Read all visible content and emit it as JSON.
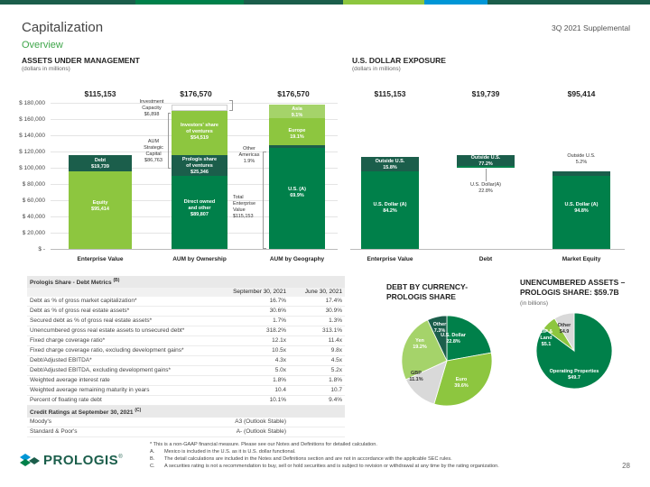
{
  "header": {
    "title": "Capitalization",
    "subtitle": "Overview",
    "supplemental": "3Q 2021 Supplemental",
    "colors": {
      "dark_green": "#1b5e4b",
      "green": "#00804a",
      "lime": "#8dc63f",
      "blue": "#0096d6"
    }
  },
  "aum": {
    "title": "ASSETS UNDER MANAGEMENT",
    "subtitle": "(dollars in millions)",
    "totals": [
      "$115,153",
      "$176,570",
      "$176,570"
    ],
    "y_ticks": [
      "$ 180,000",
      "$ 160,000",
      "$ 140,000",
      "$ 120,000",
      "$ 100,000",
      "$ 80,000",
      "$ 60,000",
      "$ 40,000",
      "$ 20,000",
      "$ -"
    ],
    "categories": [
      "Enterprise Value",
      "AUM by Ownership",
      "AUM by Geography"
    ],
    "labels": {
      "debt": "Debt",
      "debt_val": "$19,739",
      "equity": "Equity",
      "equity_val": "$95,414",
      "direct_owned_1": "Direct owned",
      "direct_owned_2": "and other",
      "direct_owned_val": "$89,807",
      "prologis_share_1": "Prologis share",
      "prologis_share_2": "of ventures",
      "prologis_share_val": "$25,346",
      "investors_share_1": "Investors' share",
      "investors_share_2": "of ventures",
      "investors_share_val": "$54,519",
      "us": "U.S.",
      "us_sup": "(A)",
      "us_val": "69.9%",
      "europe": "Europe",
      "europe_val": "19.1%",
      "asia": "Asia",
      "asia_val": "9.1%",
      "other_americas_1": "Other",
      "other_americas_2": "Americas",
      "other_americas_val": "1.9%",
      "inv_cap_1": "Investment",
      "inv_cap_2": "Capacity",
      "inv_cap_val": "$6,898",
      "aum_sc_1": "AUM",
      "aum_sc_2": "Strategic",
      "aum_sc_3": "Capital",
      "aum_sc_val": "$86,763",
      "tev_1": "Total",
      "tev_2": "Enterprise",
      "tev_3": "Value",
      "tev_val": "$115,153"
    }
  },
  "usd": {
    "title": "U.S. DOLLAR EXPOSURE",
    "subtitle": "(dollars in millions)",
    "totals": [
      "$115,153",
      "$19,739",
      "$95,414"
    ],
    "categories": [
      "Enterprise Value",
      "Debt",
      "Market Equity"
    ],
    "labels": {
      "outside_us": "Outside U.S.",
      "usd": "U.S. Dollar",
      "usd_sup": "(A)",
      "ev_outside": "15.8%",
      "ev_usd": "84.2%",
      "debt_outside": "77.2%",
      "debt_usd": "22.8%",
      "eq_outside": "5.2%",
      "eq_usd": "94.8%"
    }
  },
  "chart_data": [
    {
      "type": "bar",
      "title": "ASSETS UNDER MANAGEMENT",
      "ylim": [
        0,
        180000
      ],
      "categories": [
        "Enterprise Value",
        "AUM by Ownership",
        "AUM by Geography"
      ],
      "series": [
        {
          "name": "Equity",
          "values": [
            95414,
            null,
            null
          ]
        },
        {
          "name": "Debt",
          "values": [
            19739,
            null,
            null
          ]
        },
        {
          "name": "Direct owned and other",
          "values": [
            null,
            89807,
            null
          ]
        },
        {
          "name": "Prologis share of ventures",
          "values": [
            null,
            25346,
            null
          ]
        },
        {
          "name": "Investors' share of ventures",
          "values": [
            null,
            54519,
            null
          ]
        },
        {
          "name": "Investment Capacity",
          "values": [
            null,
            6898,
            null
          ]
        },
        {
          "name": "U.S.",
          "values": [
            null,
            null,
            69.9
          ]
        },
        {
          "name": "Other Americas",
          "values": [
            null,
            null,
            1.9
          ]
        },
        {
          "name": "Europe",
          "values": [
            null,
            null,
            19.1
          ]
        },
        {
          "name": "Asia",
          "values": [
            null,
            null,
            9.1
          ]
        }
      ]
    },
    {
      "type": "bar",
      "title": "U.S. DOLLAR EXPOSURE",
      "categories": [
        "Enterprise Value",
        "Debt",
        "Market Equity"
      ],
      "series": [
        {
          "name": "U.S. Dollar",
          "values": [
            84.2,
            22.8,
            94.8
          ]
        },
        {
          "name": "Outside U.S.",
          "values": [
            15.8,
            77.2,
            5.2
          ]
        }
      ]
    },
    {
      "type": "pie",
      "title": "DEBT BY CURRENCY- PROLOGIS SHARE",
      "labels": [
        "U.S. Dollar",
        "Euro",
        "GBP",
        "Yen",
        "Other"
      ],
      "values": [
        22.8,
        39.6,
        11.1,
        19.2,
        7.3
      ]
    },
    {
      "type": "pie",
      "title": "UNENCUMBERED ASSETS – PROLOGIS SHARE: $59.7B",
      "labels": [
        "Operating Properties",
        "CIP & Land",
        "Other"
      ],
      "values": [
        49.7,
        5.1,
        4.9
      ]
    }
  ],
  "metrics": {
    "title": "Prologis Share - Debt Metrics",
    "title_sup": "(B)",
    "col1": "September 30, 2021",
    "col2": "June 30, 2021",
    "rows": [
      {
        "label": "Debt as % of gross market capitalization*",
        "v1": "16.7%",
        "v2": "17.4%"
      },
      {
        "label": "Debt as % of gross real estate assets*",
        "v1": "30.6%",
        "v2": "30.9%"
      },
      {
        "label": "Secured debt as % of gross real estate assets*",
        "v1": "1.7%",
        "v2": "1.3%"
      },
      {
        "label": "Unencumbered gross real estate assets to unsecured debt*",
        "v1": "318.2%",
        "v2": "313.1%"
      },
      {
        "label": "Fixed charge coverage ratio*",
        "v1": "12.1x",
        "v2": "11.4x"
      },
      {
        "label": "Fixed charge coverage ratio, excluding development gains*",
        "v1": "10.5x",
        "v2": "9.8x"
      },
      {
        "label": "Debt/Adjusted EBITDA*",
        "v1": "4.3x",
        "v2": "4.5x"
      },
      {
        "label": "Debt/Adjusted EBITDA, excluding development gains*",
        "v1": "5.0x",
        "v2": "5.2x"
      },
      {
        "label": "Weighted average interest rate",
        "v1": "1.8%",
        "v2": "1.8%"
      },
      {
        "label": "Weighted average remaining maturity in years",
        "v1": "10.4",
        "v2": "10.7"
      },
      {
        "label": "Percent of floating rate debt",
        "v1": "10.1%",
        "v2": "9.4%"
      }
    ],
    "ratings_title": "Credit Ratings at September 30, 2021",
    "ratings_sup": "(C)",
    "ratings": [
      {
        "agency": "Moody's",
        "rating": "A3 (Outlook Stable)"
      },
      {
        "agency": "Standard & Poor's",
        "rating": "A- (Outlook Stable)"
      }
    ]
  },
  "pie1": {
    "title_1": "DEBT BY CURRENCY-",
    "title_2": "PROLOGIS SHARE",
    "labels": {
      "usd_1": "U.S. Dollar",
      "usd_2": "22.8%",
      "euro_1": "Euro",
      "euro_2": "39.6%",
      "gbp_1": "GBP",
      "gbp_2": "11.1%",
      "yen_1": "Yen",
      "yen_2": "19.2%",
      "other_1": "Other",
      "other_2": "7.3%"
    }
  },
  "pie2": {
    "title_1": "UNENCUMBERED ASSETS –",
    "title_2": "PROLOGIS SHARE: $59.7B",
    "subtitle": "(in billions)",
    "labels": {
      "op_1": "Operating Properties",
      "op_2": "$49.7",
      "cip_1": "CIP &",
      "cip_2": "Land",
      "cip_3": "$5.1",
      "other_1": "Other",
      "other_2": "$4.9"
    }
  },
  "footnotes": {
    "star": "* This is a non-GAAP financial measure. Please see our Notes and Definitions for detailed calculation.",
    "items": [
      {
        "key": "A.",
        "text": "Mexico is included in the U.S. as it is U.S. dollar functional."
      },
      {
        "key": "B.",
        "text": "The detail calculations are included in the Notes and Definitions section and are not in accordance with the applicable SEC rules."
      },
      {
        "key": "C.",
        "text": "A securities rating is not a recommendation to buy, sell or hold securities and is subject to revision or withdrawal at any time by the rating organization."
      }
    ]
  },
  "logo": {
    "text": "PROLOGIS",
    "mark": "®"
  },
  "page_number": "28"
}
